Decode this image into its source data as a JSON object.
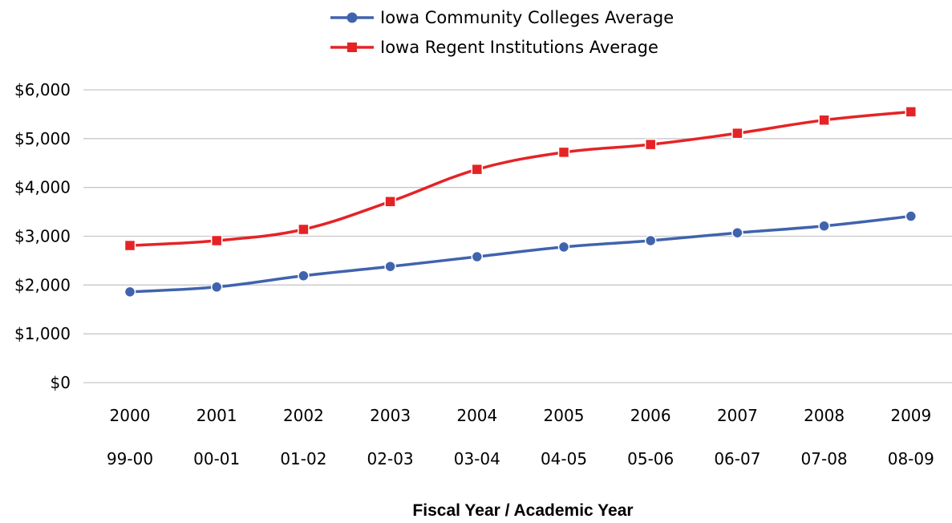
{
  "chart_data": {
    "type": "line",
    "categories": [
      "2000",
      "2001",
      "2002",
      "2003",
      "2004",
      "2005",
      "2006",
      "2007",
      "2008",
      "2009"
    ],
    "categories_secondary": [
      "99-00",
      "00-01",
      "01-02",
      "02-03",
      "03-04",
      "04-05",
      "05-06",
      "06-07",
      "07-08",
      "08-09"
    ],
    "series": [
      {
        "name": "Iowa Community Colleges Average",
        "values": [
          1860,
          1960,
          2190,
          2380,
          2580,
          2780,
          2910,
          3070,
          3210,
          3410
        ],
        "color": "#4063AD",
        "marker": "circle"
      },
      {
        "name": "Iowa Regent Institutions Average",
        "values": [
          2810,
          2910,
          3140,
          3710,
          4370,
          4720,
          4880,
          5110,
          5380,
          5550
        ],
        "color": "#E52326",
        "marker": "square"
      }
    ],
    "yticks": [
      "$0",
      "$1,000",
      "$2,000",
      "$3,000",
      "$4,000",
      "$5,000",
      "$6,000"
    ],
    "ylim": [
      0,
      6000
    ],
    "xlabel": "Fiscal Year / Academic Year",
    "ylabel": "",
    "title": "",
    "grid": true,
    "legend_position": "top"
  }
}
